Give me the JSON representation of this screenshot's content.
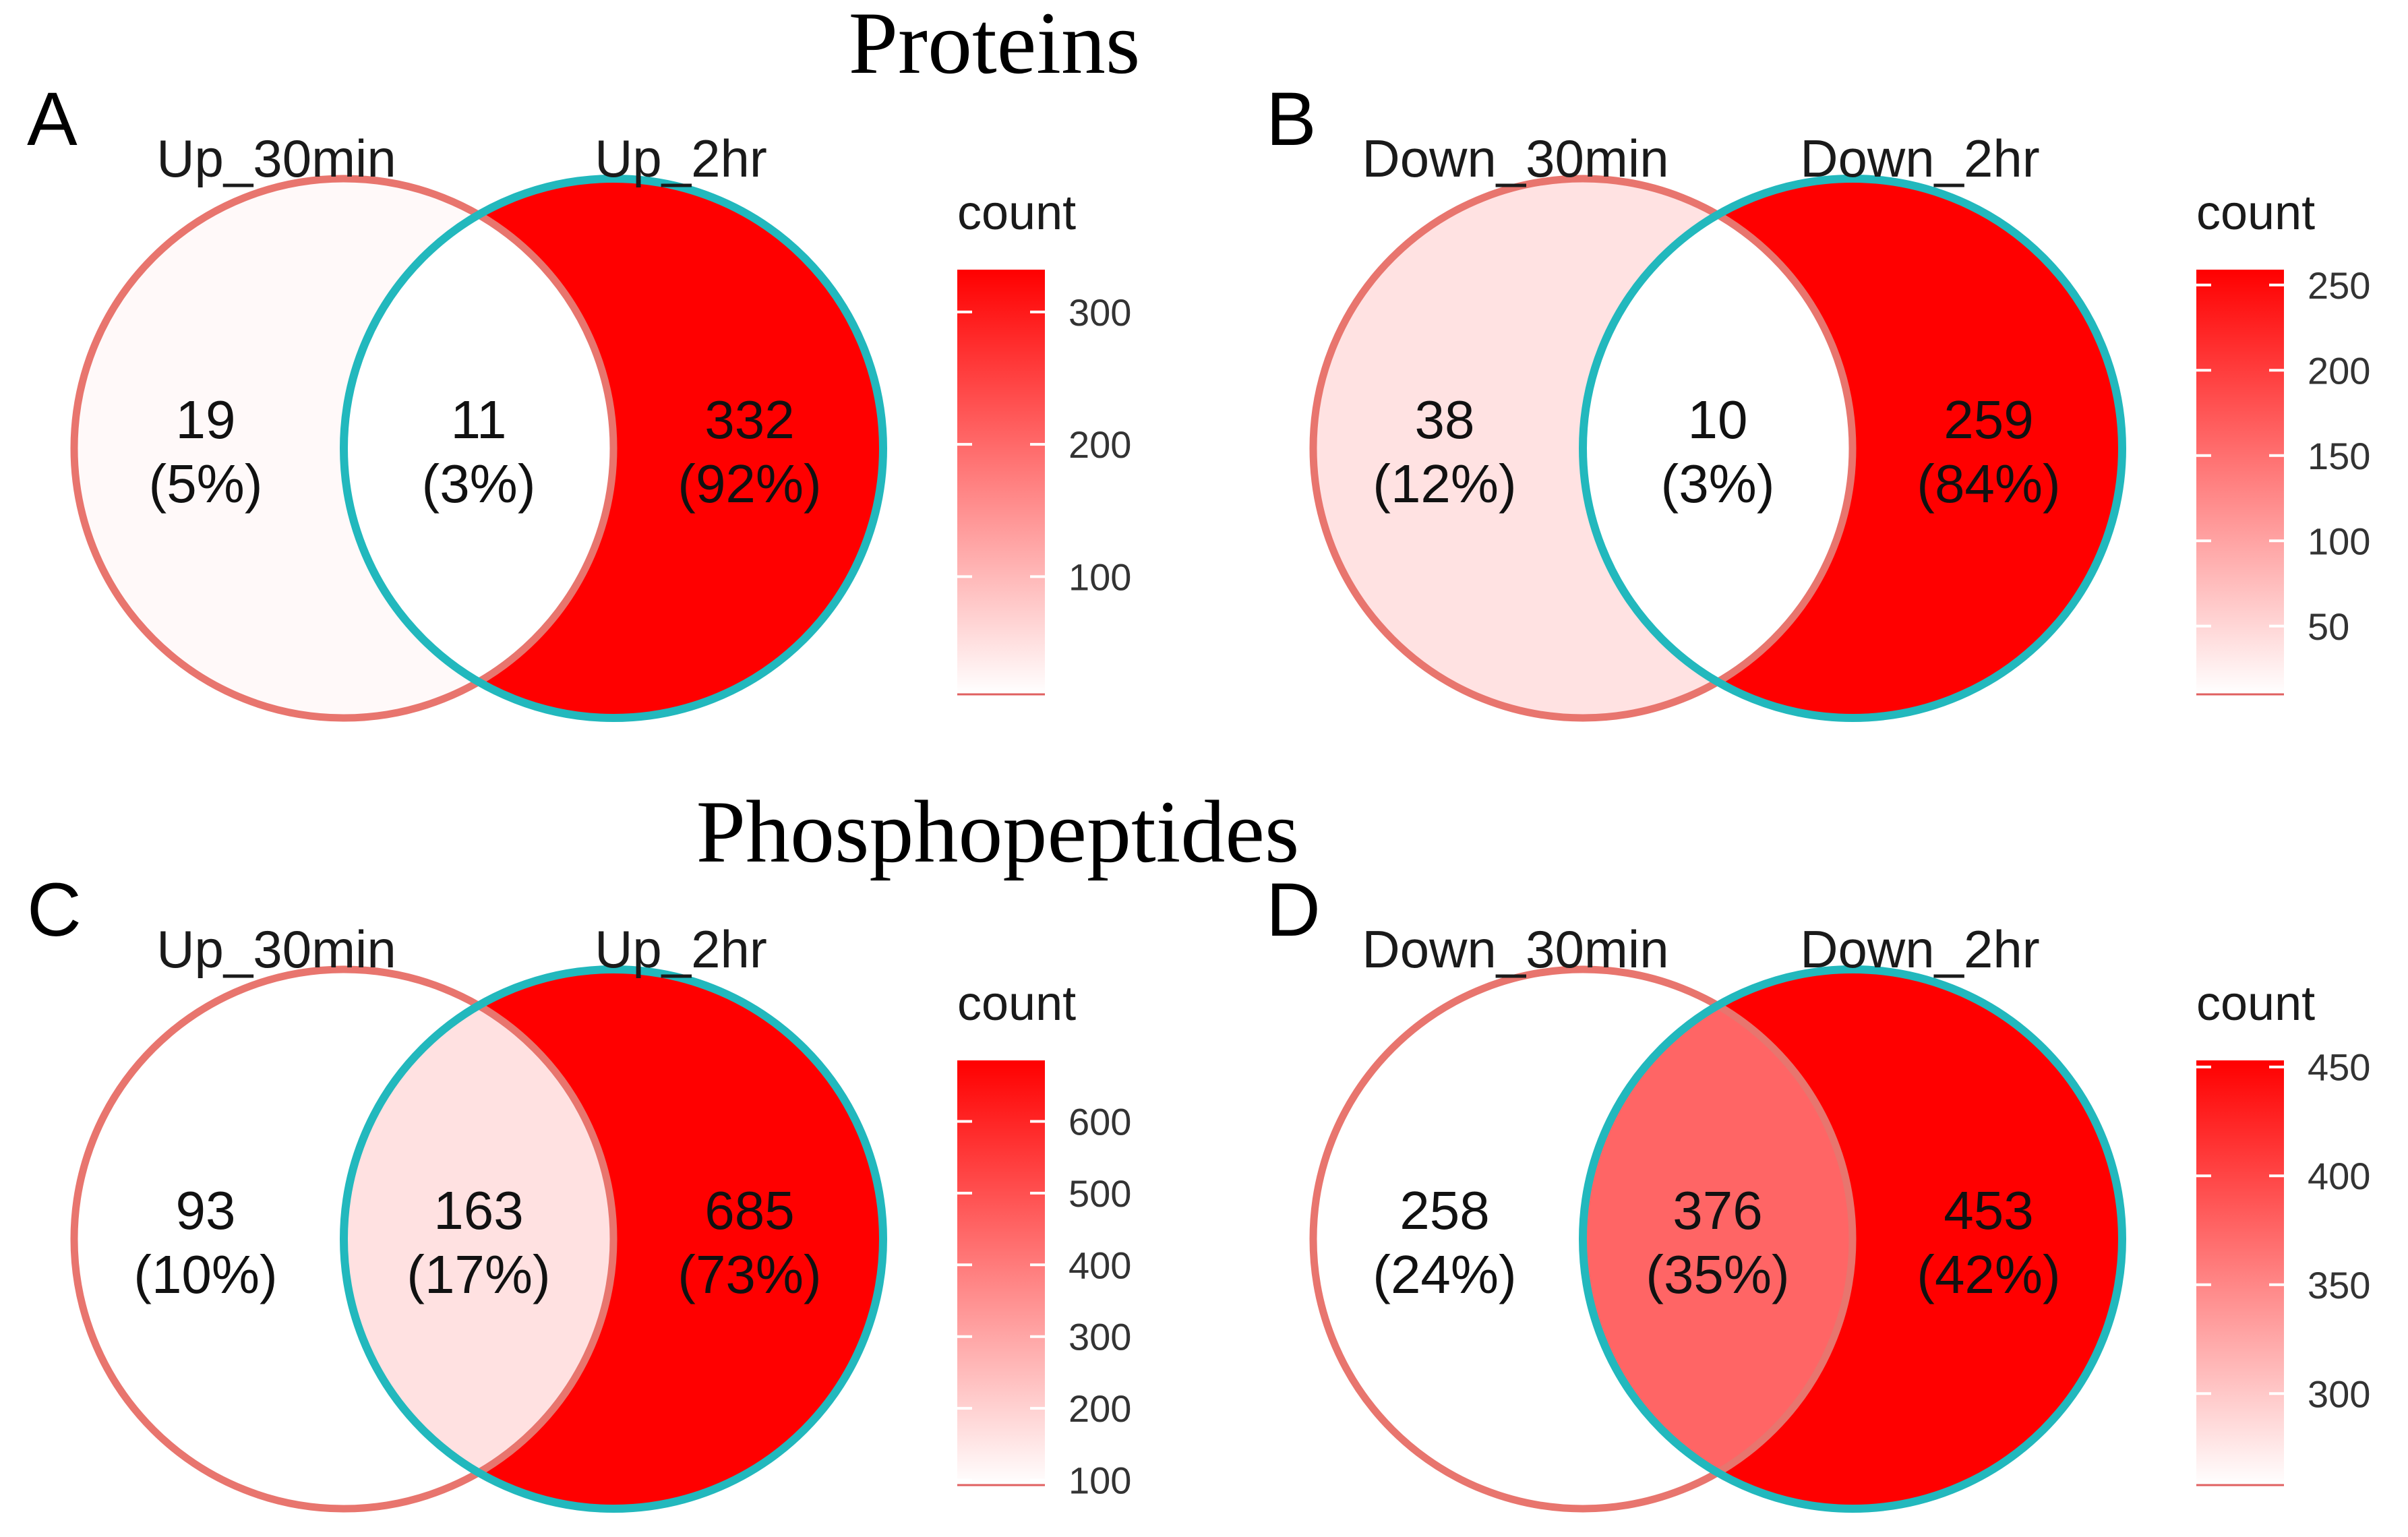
{
  "section_titles": {
    "top": "Proteins",
    "bottom": "Phosphopeptides"
  },
  "legend_title": "count",
  "colors": {
    "set1_outline": "#e8756e",
    "set2_outline": "#22b8bd",
    "scale_low": "#ffffff",
    "scale_high": "#ff0000"
  },
  "chart_data": [
    {
      "type": "venn",
      "panel": "A",
      "sets": [
        "Up_30min",
        "Up_2hr"
      ],
      "regions": [
        {
          "id": "only_set1",
          "count": 19,
          "percent": "5%"
        },
        {
          "id": "overlap",
          "count": 11,
          "percent": "3%"
        },
        {
          "id": "only_set2",
          "count": 332,
          "percent": "92%"
        }
      ],
      "legend": {
        "title": "count",
        "range": [
          11,
          332
        ],
        "ticks": [
          100,
          200,
          300
        ]
      }
    },
    {
      "type": "venn",
      "panel": "B",
      "sets": [
        "Down_30min",
        "Down_2hr"
      ],
      "regions": [
        {
          "id": "only_set1",
          "count": 38,
          "percent": "12%"
        },
        {
          "id": "overlap",
          "count": 10,
          "percent": "3%"
        },
        {
          "id": "only_set2",
          "count": 259,
          "percent": "84%"
        }
      ],
      "legend": {
        "title": "count",
        "range": [
          10,
          259
        ],
        "ticks": [
          50,
          100,
          150,
          200,
          250
        ]
      }
    },
    {
      "type": "venn",
      "panel": "C",
      "sets": [
        "Up_30min",
        "Up_2hr"
      ],
      "regions": [
        {
          "id": "only_set1",
          "count": 93,
          "percent": "10%"
        },
        {
          "id": "overlap",
          "count": 163,
          "percent": "17%"
        },
        {
          "id": "only_set2",
          "count": 685,
          "percent": "73%"
        }
      ],
      "legend": {
        "title": "count",
        "range": [
          93,
          685
        ],
        "ticks": [
          100,
          200,
          300,
          400,
          500,
          600
        ]
      }
    },
    {
      "type": "venn",
      "panel": "D",
      "sets": [
        "Down_30min",
        "Down_2hr"
      ],
      "regions": [
        {
          "id": "only_set1",
          "count": 258,
          "percent": "24%"
        },
        {
          "id": "overlap",
          "count": 376,
          "percent": "35%"
        },
        {
          "id": "only_set2",
          "count": 453,
          "percent": "42%"
        }
      ],
      "legend": {
        "title": "count",
        "range": [
          258,
          453
        ],
        "ticks": [
          300,
          350,
          400,
          450
        ]
      }
    }
  ]
}
